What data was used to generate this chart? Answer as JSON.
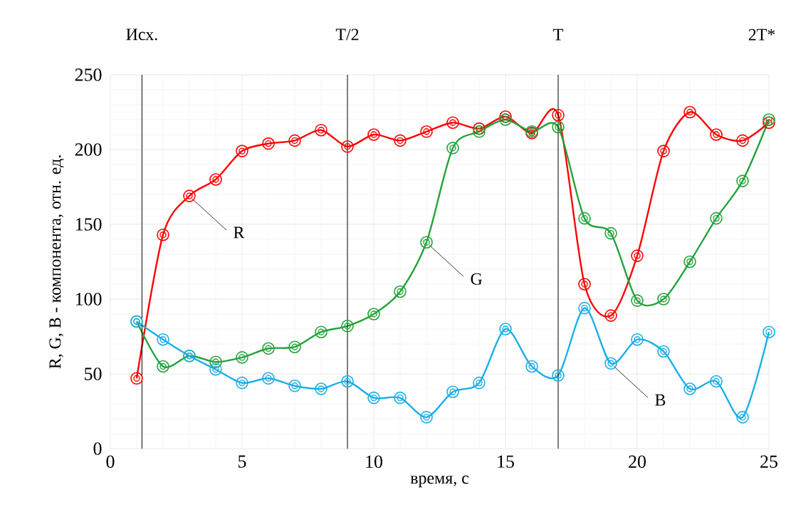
{
  "chart_data": {
    "type": "line",
    "xlabel": "время, с",
    "ylabel": "R, G, B - компонента, отн. ед.",
    "x": [
      1,
      2,
      3,
      4,
      5,
      6,
      7,
      8,
      9,
      10,
      11,
      12,
      13,
      14,
      15,
      16,
      17,
      18,
      19,
      20,
      21,
      22,
      23,
      24,
      25
    ],
    "series": [
      {
        "color": "#ff0000",
        "values": [
          47,
          143,
          169,
          180,
          199,
          204,
          206,
          213,
          202,
          210,
          206,
          212,
          218,
          214,
          222,
          211,
          223,
          110,
          89,
          129,
          199,
          225,
          210,
          206,
          218
        ]
      },
      {
        "color": "#22a33a",
        "values": [
          85,
          55,
          62,
          58,
          61,
          67,
          68,
          78,
          82,
          90,
          105,
          138,
          201,
          212,
          220,
          212,
          215,
          154,
          144,
          99,
          100,
          125,
          154,
          179,
          220
        ]
      },
      {
        "color": "#1aafe6",
        "values": [
          85,
          73,
          62,
          53,
          44,
          47,
          42,
          40,
          45,
          34,
          34,
          21,
          38,
          44,
          80,
          55,
          49,
          94,
          57,
          73,
          65,
          40,
          45,
          21,
          78
        ]
      }
    ],
    "xlim": [
      0,
      25
    ],
    "ylim": [
      0,
      250
    ],
    "xticks": [
      0,
      5,
      10,
      15,
      20,
      25
    ],
    "yticks": [
      0,
      50,
      100,
      150,
      200,
      250
    ],
    "grid": true,
    "marker": "circle",
    "line_style": "solid",
    "ref_lines": [
      {
        "axis": "x",
        "value": 1.2,
        "label": "Исх.",
        "color": "#000000"
      },
      {
        "axis": "x",
        "value": 9,
        "label": "T/2",
        "color": "#000000"
      },
      {
        "axis": "x",
        "value": 17,
        "label": "T",
        "color": "#000000"
      }
    ],
    "annotations": [
      "2T*",
      {
        "text": "R",
        "x": 3,
        "y": 169
      },
      {
        "text": "G",
        "x": 12,
        "y": 138
      },
      {
        "text": "B",
        "x": 19,
        "y": 57
      }
    ]
  }
}
